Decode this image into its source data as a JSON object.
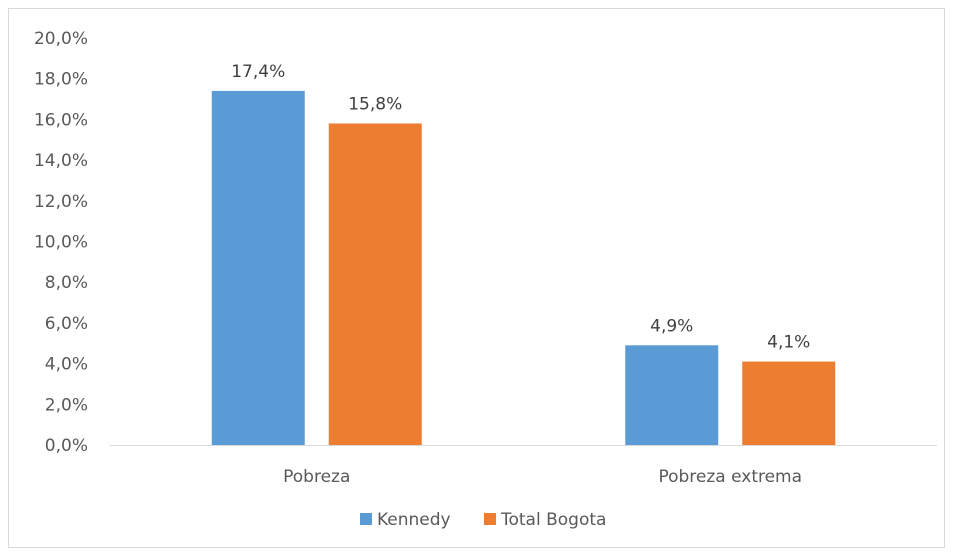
{
  "chart_data": {
    "type": "bar",
    "categories": [
      "Pobreza",
      "Pobreza extrema"
    ],
    "series": [
      {
        "name": "Kennedy",
        "values": [
          17.4,
          4.9
        ],
        "labels": [
          "17,4%",
          "4,9%"
        ],
        "color": "#5b9bd5"
      },
      {
        "name": "Total Bogota",
        "values": [
          15.8,
          4.1
        ],
        "labels": [
          "15,8%",
          "4,1%"
        ],
        "color": "#ed7d31"
      }
    ],
    "ylim": [
      0,
      20
    ],
    "yticks": [
      0,
      2,
      4,
      6,
      8,
      10,
      12,
      14,
      16,
      18,
      20
    ],
    "ytick_labels": [
      "0,0%",
      "2,0%",
      "4,0%",
      "6,0%",
      "8,0%",
      "10,0%",
      "12,0%",
      "14,0%",
      "16,0%",
      "18,0%",
      "20,0%"
    ],
    "grid": false,
    "legend_position": "bottom",
    "axis_color": "#d9d9d9"
  }
}
